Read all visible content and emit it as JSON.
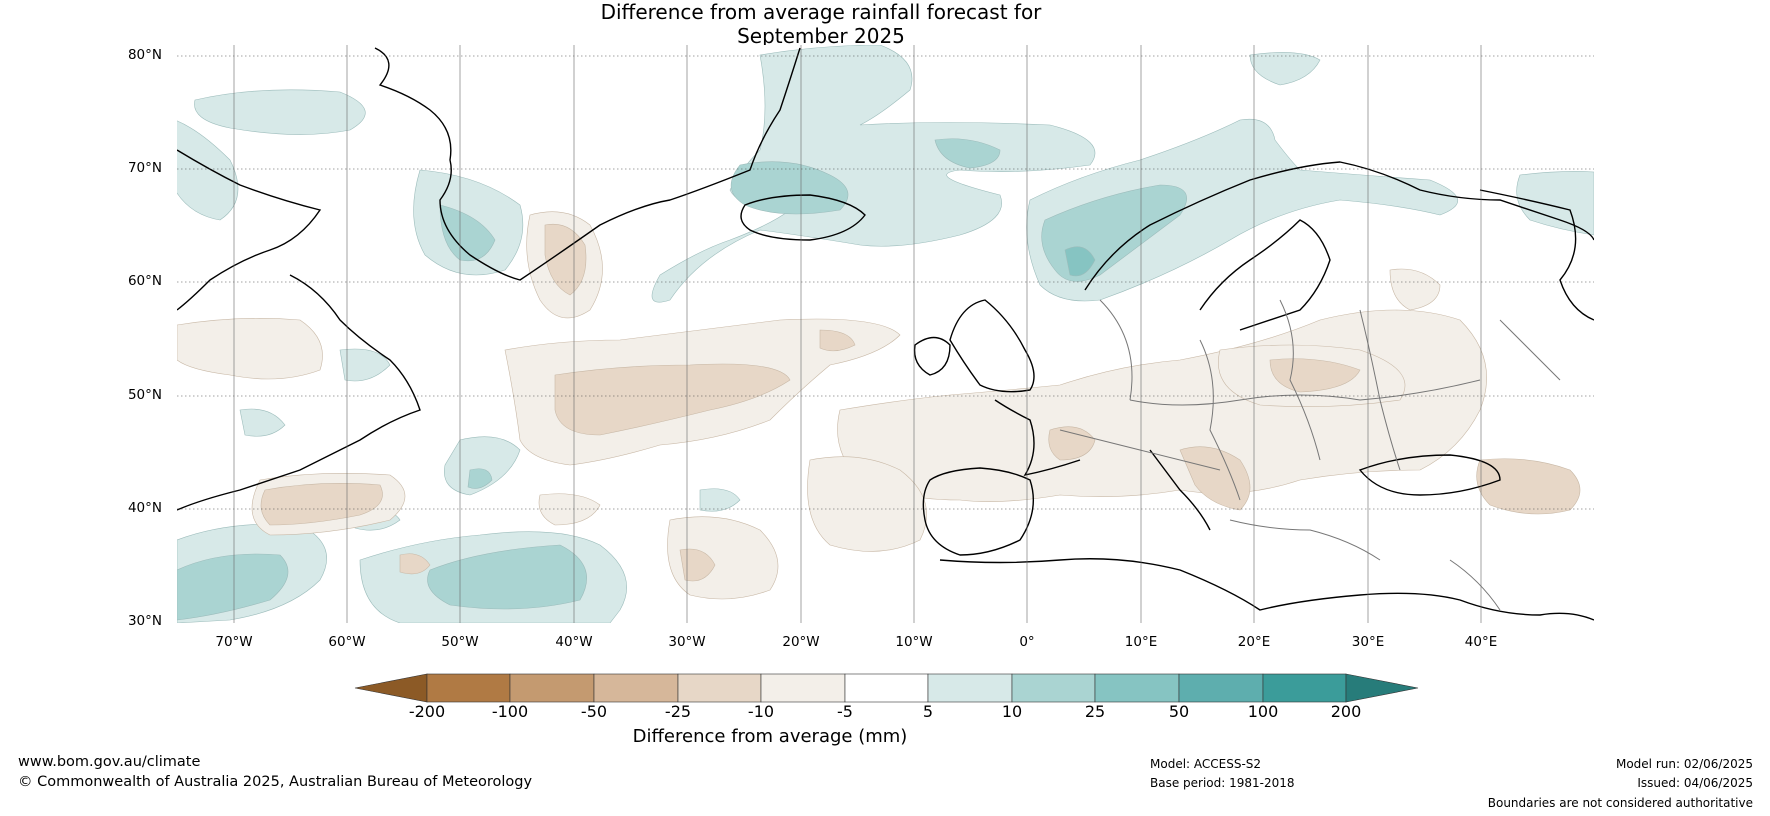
{
  "title": {
    "line1": "Difference from average rainfall forecast for",
    "line2": "September 2025"
  },
  "map": {
    "lat_labels": [
      "80°N",
      "70°N",
      "60°N",
      "50°N",
      "40°N",
      "30°N"
    ],
    "lon_labels": [
      "70°W",
      "60°W",
      "50°W",
      "40°W",
      "30°W",
      "20°W",
      "10°W",
      "0°",
      "10°E",
      "20°E",
      "30°E",
      "40°E"
    ],
    "extent": {
      "lon_min": -75,
      "lon_max": 50,
      "lat_min": 30,
      "lat_max": 81
    },
    "colors": {
      "minus_200": "#8c5a26",
      "minus_100": "#b07a44",
      "minus_50": "#c49a70",
      "minus_25": "#d6b79a",
      "minus_10": "#e7d7c7",
      "minus_5": "#f3efe9",
      "zero": "#ffffff",
      "plus_5": "#d7e9e8",
      "plus_10": "#aad4d2",
      "plus_25": "#86c4c2",
      "plus_50": "#5eaeae",
      "plus_100": "#3b9c9a",
      "plus_200": "#277c7a"
    }
  },
  "colorbar": {
    "ticks": [
      "-200",
      "-100",
      "-50",
      "-25",
      "-10",
      "-5",
      "5",
      "10",
      "25",
      "50",
      "100",
      "200"
    ],
    "label": "Difference from average (mm)"
  },
  "footer": {
    "website": "www.bom.gov.au/climate",
    "copyright": "© Commonwealth of Australia 2025, Australian Bureau of Meteorology",
    "model": "Model: ACCESS-S2",
    "base_period": "Base period: 1981-2018",
    "model_run": "Model run: 02/06/2025",
    "issued": "Issued: 04/06/2025",
    "disclaimer": "Boundaries are not considered authoritative"
  }
}
